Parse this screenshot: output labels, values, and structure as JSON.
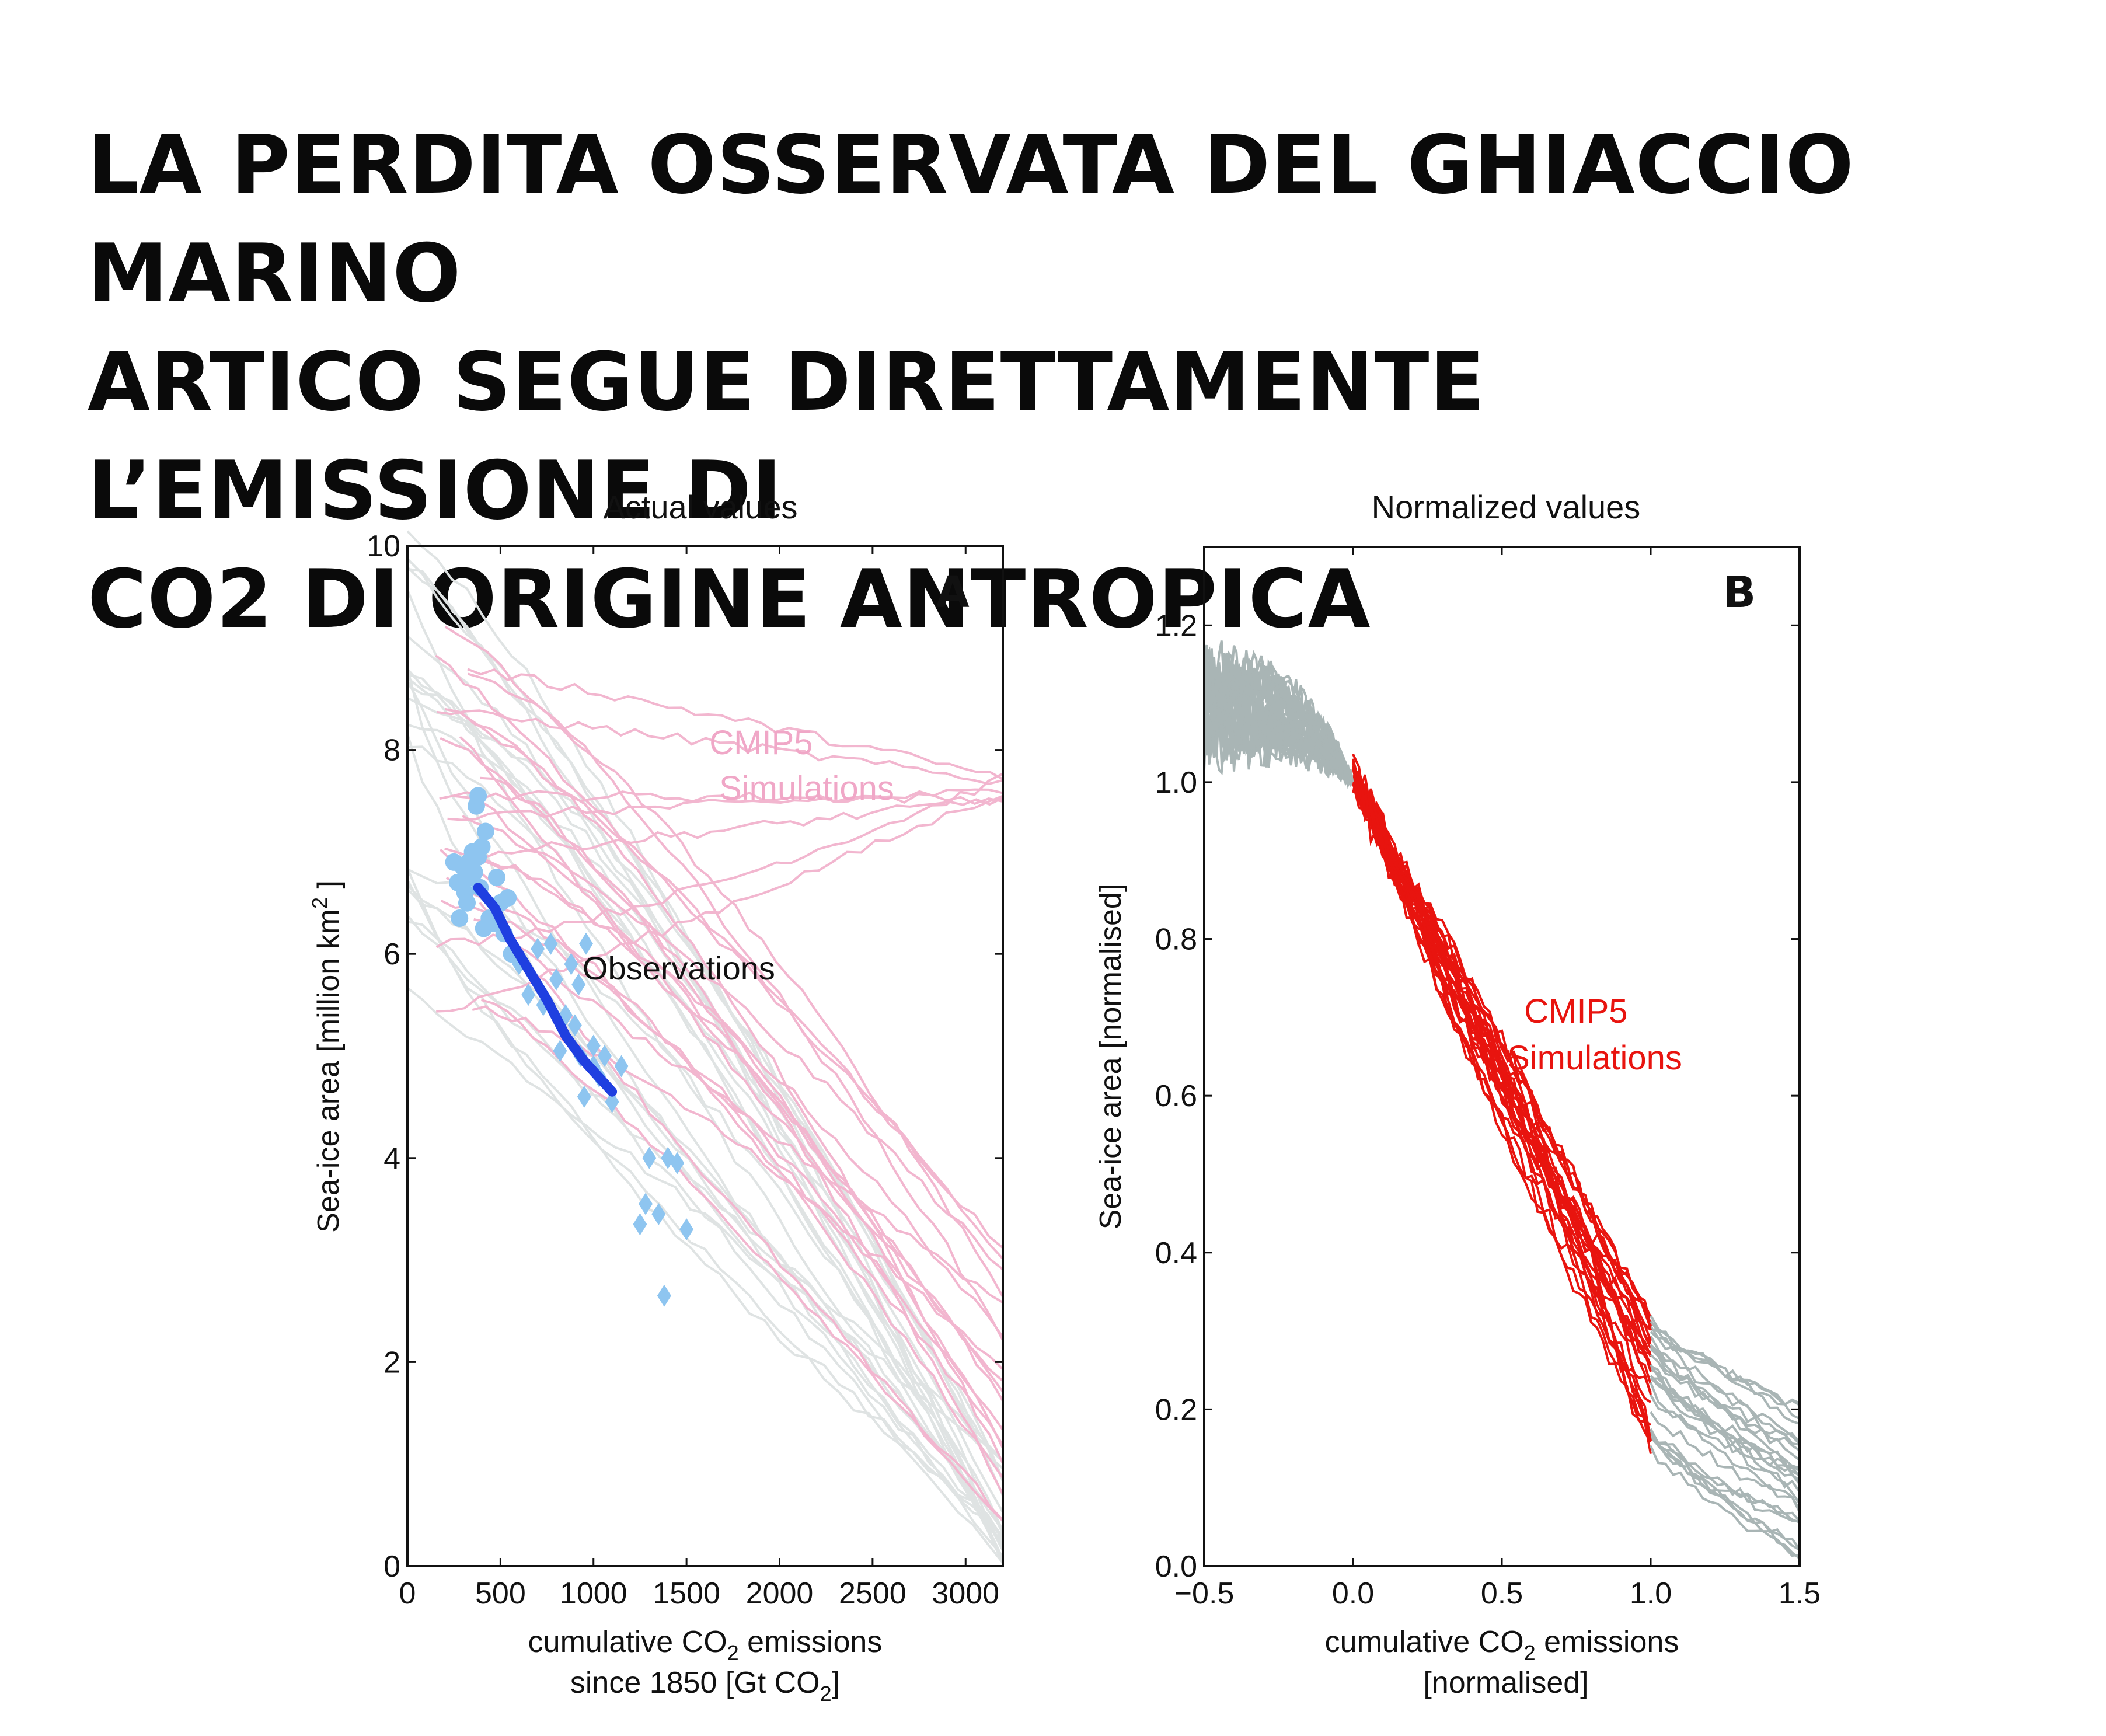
{
  "page": {
    "title_lines": [
      "LA PERDITA OSSERVATA DEL GHIACCIO MARINO",
      "ARTICO SEGUE DIRETTAMENTE L’EMISSIONE DI",
      "CO2 DI ORIGINE ANTROPICA"
    ]
  },
  "colors": {
    "cmip5_pink": "#f2b6cf",
    "observations_blue": "#1f3fe0",
    "observations_light": "#8ec5f0",
    "cmip5_red": "#e8140f",
    "historic_grey": "#a9b5b5",
    "faint_grey": "#dfe3e3"
  },
  "chart_data": [
    {
      "type": "line",
      "panel_letter": "A",
      "title": "Actual values",
      "xlabel_parts": [
        "cumulative CO",
        "2",
        " emissions"
      ],
      "xlabel_line2_parts": [
        "since 1850 [Gt CO",
        "2",
        "]"
      ],
      "ylabel_parts": [
        "Sea-ice area [million km",
        "2",
        " ]"
      ],
      "xlim": [
        0,
        3200
      ],
      "ylim": [
        0,
        10
      ],
      "xticks": [
        "0",
        "500",
        "1000",
        "1500",
        "2000",
        "2500",
        "3000"
      ],
      "yticks": [
        "0",
        "2",
        "4",
        "6",
        "8",
        "10"
      ],
      "annotations": {
        "simulations": [
          "CMIP5",
          "Simulations"
        ],
        "observations": "Observations"
      },
      "series": [
        {
          "name": "Observations",
          "kind": "line",
          "x": [
            380,
            470,
            550,
            650,
            750,
            850,
            950,
            1050,
            1100
          ],
          "y": [
            6.65,
            6.45,
            6.15,
            5.85,
            5.55,
            5.2,
            4.95,
            4.75,
            4.65
          ]
        },
        {
          "kind": "points-circle",
          "x": [
            250,
            270,
            280,
            300,
            310,
            320,
            330,
            340,
            350,
            360,
            370,
            380,
            390,
            400,
            410,
            420,
            440,
            460,
            480,
            500,
            520,
            540,
            560,
            380
          ],
          "y": [
            6.9,
            6.7,
            6.35,
            6.85,
            6.6,
            6.5,
            6.9,
            6.75,
            7.0,
            6.8,
            7.45,
            7.55,
            6.65,
            7.05,
            6.25,
            7.2,
            6.35,
            6.3,
            6.75,
            6.5,
            6.2,
            6.55,
            6.0,
            6.95
          ]
        },
        {
          "kind": "points-diamond",
          "x": [
            600,
            650,
            700,
            730,
            770,
            800,
            820,
            850,
            880,
            900,
            930,
            960,
            1000,
            1030,
            1060,
            1100,
            1150,
            1300,
            1250,
            1280,
            1350,
            1400,
            1450,
            1500,
            1380,
            1000,
            950,
            920
          ],
          "y": [
            5.9,
            5.6,
            6.05,
            5.5,
            6.1,
            5.75,
            5.05,
            5.4,
            5.9,
            5.3,
            5.0,
            6.1,
            5.1,
            4.8,
            5.0,
            4.55,
            4.9,
            4.0,
            3.35,
            3.55,
            3.45,
            4.0,
            3.95,
            3.3,
            2.65,
            4.9,
            4.6,
            5.7
          ]
        }
      ]
    },
    {
      "type": "line",
      "panel_letter": "B",
      "title": "Normalized values",
      "xlabel_parts": [
        "cumulative CO",
        "2",
        " emissions"
      ],
      "xlabel_line2": "[normalised]",
      "ylabel": "Sea-ice area [normalised]",
      "xlim": [
        -0.5,
        1.5
      ],
      "ylim": [
        0.0,
        1.3
      ],
      "xticks": [
        "−0.5",
        "0.0",
        "0.5",
        "1.0",
        "1.5"
      ],
      "yticks": [
        "0.0",
        "0.2",
        "0.4",
        "0.6",
        "0.8",
        "1.0",
        "1.2"
      ],
      "annotations": {
        "simulations": [
          "CMIP5",
          "Simulations"
        ]
      }
    }
  ]
}
